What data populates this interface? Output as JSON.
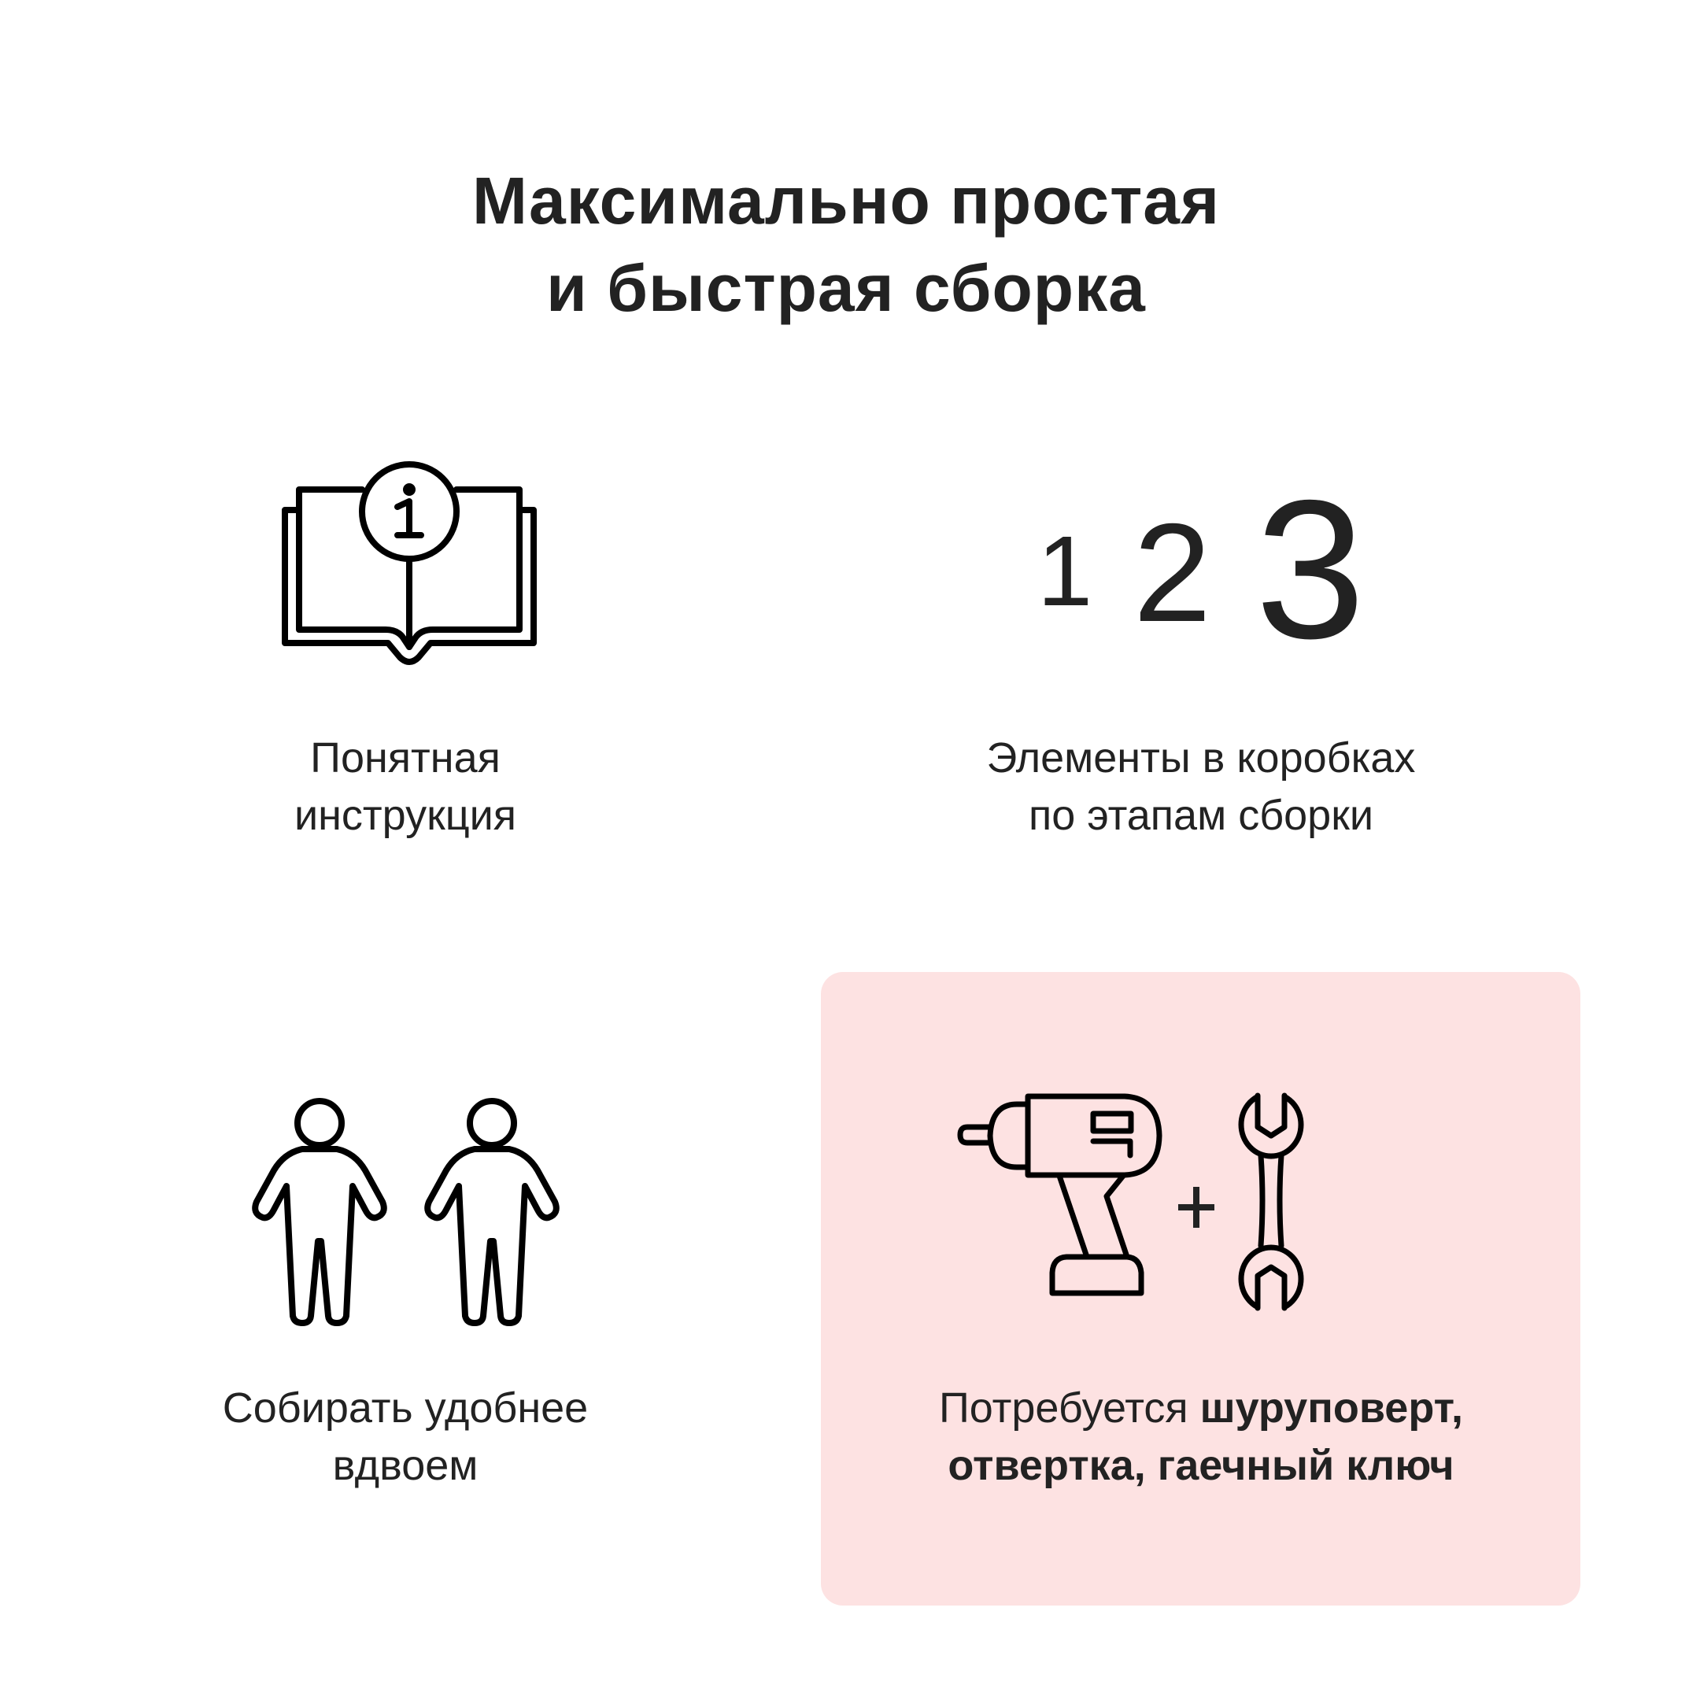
{
  "title": {
    "line1": "Максимально простая",
    "line2": "и быстрая сборка"
  },
  "colors": {
    "text": "#222222",
    "card_background": "#fde2e2",
    "icon_stroke": "#000000"
  },
  "features": [
    {
      "icon": "open-book-info-icon",
      "line1": "Понятная",
      "line2": "инструкция"
    },
    {
      "icon": "numbers-123-icon",
      "digits": [
        "1",
        "2",
        "3"
      ],
      "line1": "Элементы в коробках",
      "line2": "по этапам сборки"
    },
    {
      "icon": "two-people-icon",
      "line1": "Собирать удобнее",
      "line2": "вдвоем"
    },
    {
      "icon": "drill-plus-wrench-icon",
      "plus": "+",
      "prefix": "Потребуется ",
      "bold1": "шуруповерт,",
      "bold2": "отвертка, гаечный ключ"
    }
  ]
}
